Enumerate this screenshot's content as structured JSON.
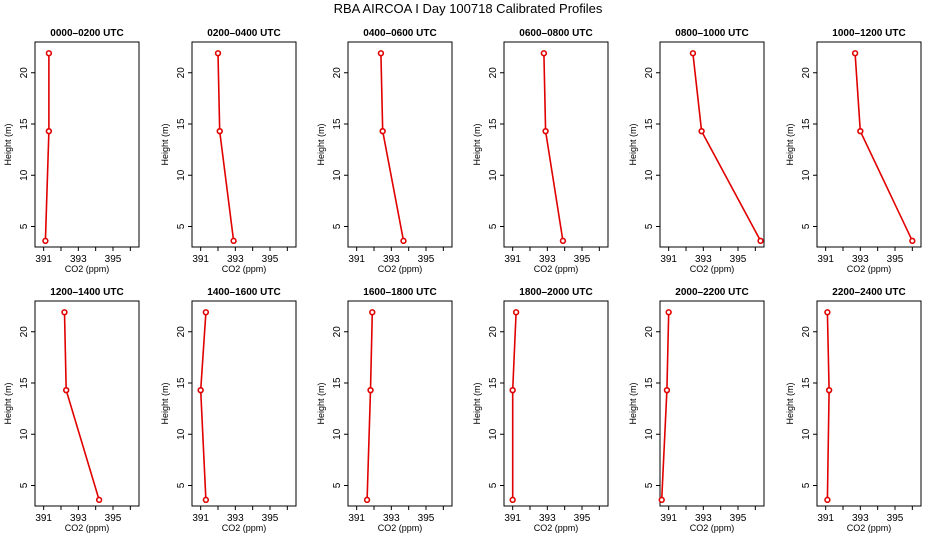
{
  "title": "RBA AIRCOA I  Day 100718  Calibrated Profiles",
  "colors": {
    "series": "#e00000",
    "axes": "#000000"
  },
  "chart_data": {
    "type": "line",
    "xlabel": "CO2 (ppm)",
    "ylabel": "Height (m)",
    "xlim": [
      390.5,
      396.5
    ],
    "ylim": [
      3,
      23
    ],
    "xticks": [
      391,
      393,
      395
    ],
    "xtick_minor": [
      392,
      394,
      396
    ],
    "yticks": [
      5,
      10,
      15,
      20
    ],
    "heights": [
      3.6,
      14.3,
      21.9
    ],
    "panels": [
      {
        "title": "0000–0200 UTC",
        "values": [
          391.1,
          391.3,
          391.3
        ]
      },
      {
        "title": "0200–0400 UTC",
        "values": [
          392.9,
          392.1,
          392.0
        ]
      },
      {
        "title": "0400–0600 UTC",
        "values": [
          393.7,
          392.5,
          392.4
        ]
      },
      {
        "title": "0600–0800 UTC",
        "values": [
          393.9,
          392.9,
          392.8
        ]
      },
      {
        "title": "0800–1000 UTC",
        "values": [
          396.3,
          392.9,
          392.4
        ]
      },
      {
        "title": "1000–1200 UTC",
        "values": [
          396.0,
          393.0,
          392.7
        ]
      },
      {
        "title": "1200–1400 UTC",
        "values": [
          394.2,
          392.3,
          392.2
        ]
      },
      {
        "title": "1400–1600 UTC",
        "values": [
          391.3,
          391.0,
          391.3
        ]
      },
      {
        "title": "1600–1800 UTC",
        "values": [
          391.6,
          391.8,
          391.9
        ]
      },
      {
        "title": "1800–2000 UTC",
        "values": [
          391.0,
          391.0,
          391.2
        ]
      },
      {
        "title": "2000–2200 UTC",
        "values": [
          390.6,
          390.9,
          391.0
        ]
      },
      {
        "title": "2200–2400 UTC",
        "values": [
          391.1,
          391.2,
          391.1
        ]
      }
    ]
  }
}
